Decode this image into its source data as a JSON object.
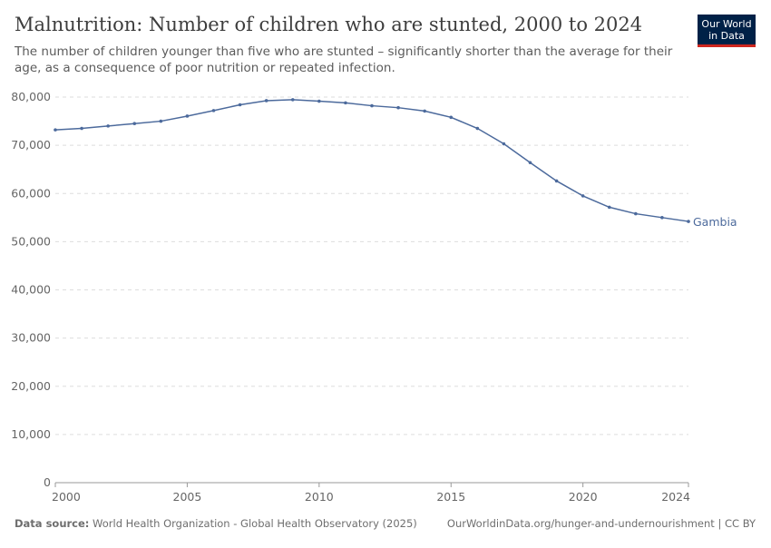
{
  "chart_data": {
    "type": "line",
    "title": "Malnutrition: Number of children who are stunted, 2000 to 2024",
    "subtitle": "The number of children younger than five who are stunted – significantly shorter than the average for their age, as a consequence of poor nutrition or repeated infection.",
    "x": [
      2000,
      2001,
      2002,
      2003,
      2004,
      2005,
      2006,
      2007,
      2008,
      2009,
      2010,
      2011,
      2012,
      2013,
      2014,
      2015,
      2016,
      2017,
      2018,
      2019,
      2020,
      2021,
      2022,
      2023,
      2024
    ],
    "series": [
      {
        "name": "Gambia",
        "color": "#4c6a9c",
        "values": [
          73200,
          73500,
          74000,
          74500,
          75000,
          76050,
          77200,
          78400,
          79250,
          79450,
          79150,
          78800,
          78200,
          77800,
          77100,
          75800,
          73500,
          70300,
          66400,
          62600,
          59500,
          57150,
          55800,
          55000,
          54200
        ]
      }
    ],
    "xlim": [
      2000,
      2024
    ],
    "xticks": [
      2000,
      2005,
      2010,
      2015,
      2020,
      2024
    ],
    "ylim": [
      0,
      80000
    ],
    "yticks": [
      0,
      {
        "value": 10000,
        "label": "10,000"
      },
      {
        "value": 20000,
        "label": "20,000"
      },
      {
        "value": 30000,
        "label": "30,000"
      },
      {
        "value": 40000,
        "label": "40,000"
      },
      {
        "value": 50000,
        "label": "50,000"
      },
      {
        "value": 60000,
        "label": "60,000"
      },
      {
        "value": 70000,
        "label": "70,000"
      },
      {
        "value": 80000,
        "label": "80,000"
      }
    ],
    "grid": true
  },
  "logo": {
    "line1": "Our World",
    "line2": "in Data"
  },
  "footer": {
    "source_label": "Data source:",
    "source": "World Health Organization - Global Health Observatory (2025)",
    "url": "OurWorldinData.org/hunger-and-undernourishment | CC BY"
  }
}
